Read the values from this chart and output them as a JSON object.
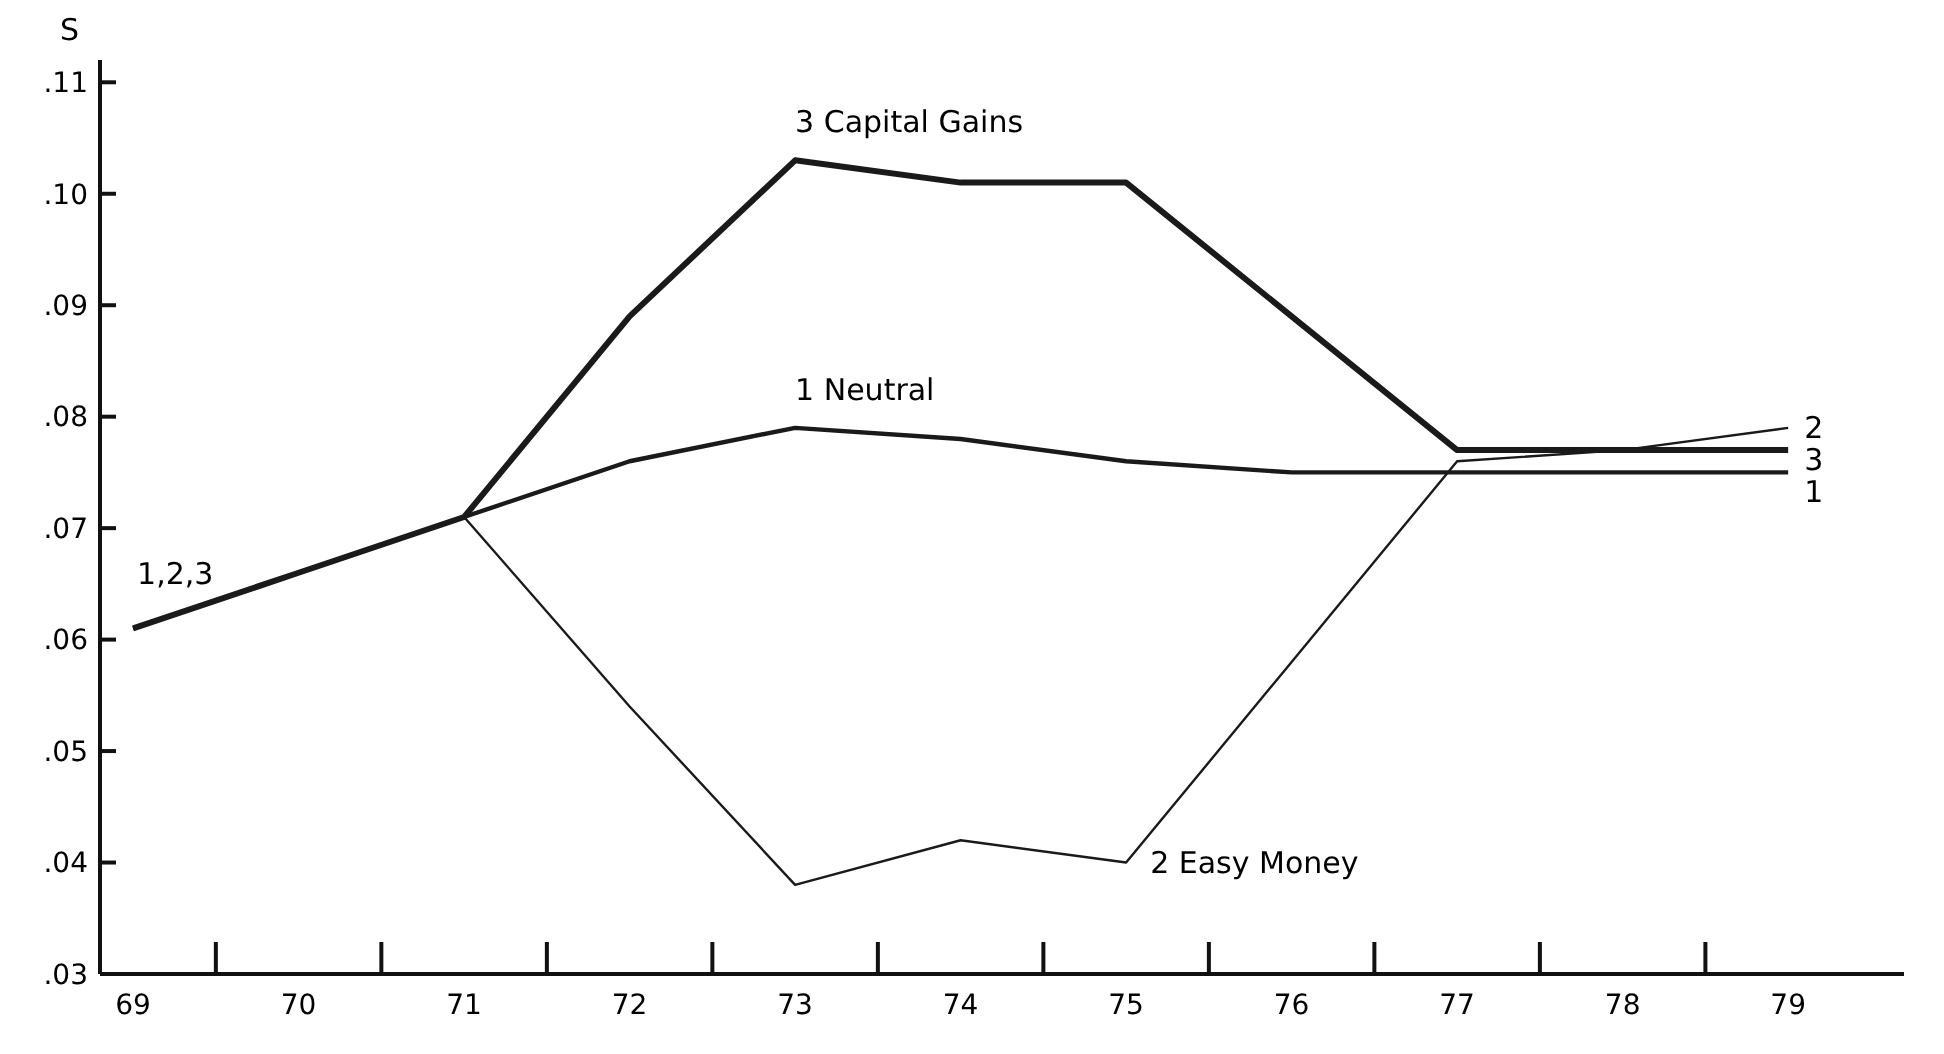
{
  "chart_data": {
    "type": "line",
    "ylabel": "S",
    "x": [
      69,
      70,
      71,
      72,
      73,
      74,
      75,
      76,
      77,
      78,
      79
    ],
    "series": [
      {
        "name": "1 Neutral",
        "color": "#1a1a1a",
        "values": [
          0.061,
          0.066,
          0.071,
          0.076,
          0.079,
          0.078,
          0.076,
          0.075,
          0.075,
          0.075,
          0.075
        ]
      },
      {
        "name": "2 Easy Money",
        "color": "#1a1a1a",
        "values": [
          0.061,
          0.066,
          0.071,
          0.054,
          0.038,
          0.042,
          0.04,
          0.058,
          0.076,
          0.077,
          0.079
        ]
      },
      {
        "name": "3 Capital Gains",
        "color": "#1a1a1a",
        "values": [
          0.061,
          0.066,
          0.071,
          0.089,
          0.103,
          0.101,
          0.101,
          0.089,
          0.077,
          0.077,
          0.077
        ]
      }
    ],
    "xlim": [
      68.8,
      79.7
    ],
    "ylim": [
      0.03,
      0.112
    ],
    "xticks": [
      69,
      {
        "value": 69.5,
        "label": null
      },
      70,
      {
        "value": 70.5,
        "label": null
      },
      71,
      {
        "value": 71.5,
        "label": null
      },
      72,
      {
        "value": 72.5,
        "label": null
      },
      73,
      {
        "value": 73.5,
        "label": null
      },
      74,
      {
        "value": 74.5,
        "label": null
      },
      75,
      {
        "value": 75.5,
        "label": null
      },
      76,
      {
        "value": 76.5,
        "label": null
      },
      77,
      {
        "value": 77.5,
        "label": null
      },
      78,
      {
        "value": 78.5,
        "label": null
      },
      79
    ],
    "yticks": [
      {
        "value": 0.03,
        "label": ".03"
      },
      {
        "value": 0.04,
        "label": ".04"
      },
      {
        "value": 0.05,
        "label": ".05"
      },
      {
        "value": 0.06,
        "label": ".06"
      },
      {
        "value": 0.07,
        "label": ".07"
      },
      {
        "value": 0.08,
        "label": ".08"
      },
      {
        "value": 0.09,
        "label": ".09"
      },
      {
        "value": 0.1,
        "label": ".10"
      },
      {
        "value": 0.11,
        "label": ".11"
      }
    ],
    "grid": false,
    "legend": false,
    "marker": "none",
    "line_style": "solid",
    "annotations": [
      "1,2,3",
      "2",
      "3",
      "1"
    ]
  }
}
